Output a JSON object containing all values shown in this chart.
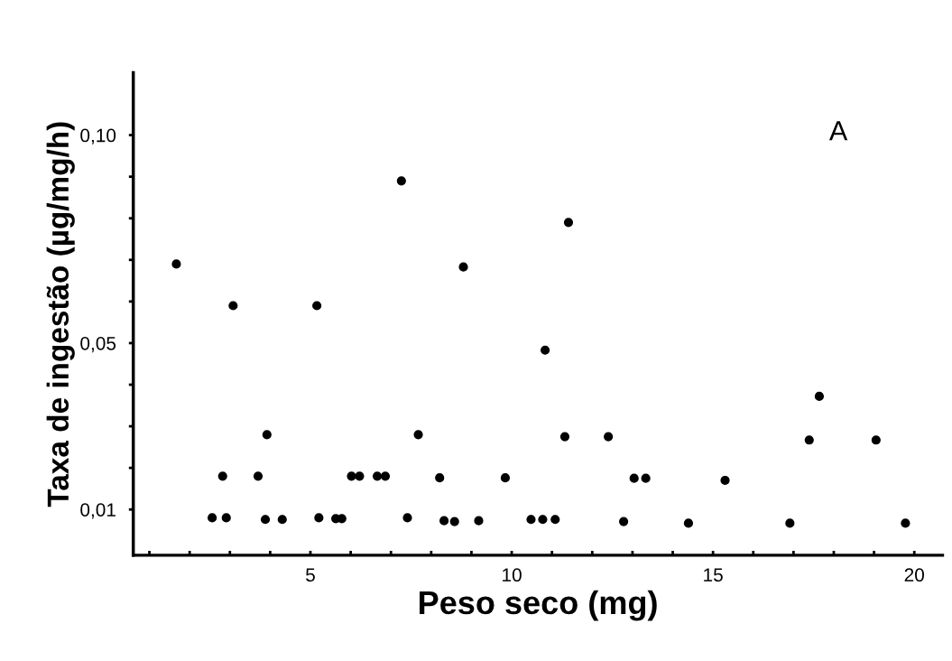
{
  "chart_data": {
    "type": "scatter",
    "xlabel": "Peso seco (mg)",
    "ylabel": "Taxa de ingestão (µg/mg/h)",
    "annotations": [
      "A"
    ],
    "x": [
      1.67,
      2.56,
      2.91,
      2.82,
      3.08,
      3.7,
      3.88,
      3.92,
      4.3,
      5.16,
      5.21,
      5.63,
      5.78,
      6.02,
      6.22,
      6.66,
      6.86,
      7.26,
      7.41,
      7.68,
      8.21,
      8.32,
      8.58,
      8.8,
      9.18,
      9.84,
      10.48,
      10.77,
      11.08,
      10.83,
      11.32,
      11.41,
      12.4,
      12.78,
      13.04,
      13.33,
      14.39,
      15.3,
      16.91,
      17.39,
      17.64,
      19.05,
      19.78
    ],
    "series": [
      {
        "color": "#000000",
        "values": [
          0.069,
          0.008,
          0.008,
          0.018,
          0.059,
          0.018,
          0.0076,
          0.028,
          0.0076,
          0.059,
          0.008,
          0.0078,
          0.0078,
          0.018,
          0.018,
          0.018,
          0.018,
          0.089,
          0.008,
          0.028,
          0.0176,
          0.0073,
          0.0071,
          0.0683,
          0.0073,
          0.0176,
          0.0076,
          0.0076,
          0.0076,
          0.0483,
          0.0275,
          0.079,
          0.0275,
          0.0071,
          0.0175,
          0.0175,
          0.0067,
          0.017,
          0.0067,
          0.0267,
          0.0372,
          0.0267,
          0.0067
        ]
      }
    ],
    "xlim": [
      0.6,
      20.7
    ],
    "ylim": [
      -0.001,
      0.115
    ],
    "xticks": [
      {
        "value": 1,
        "label": null
      },
      {
        "value": 2,
        "label": null
      },
      {
        "value": 3,
        "label": null
      },
      {
        "value": 4,
        "label": null
      },
      5,
      {
        "value": 6,
        "label": null
      },
      {
        "value": 7,
        "label": null
      },
      {
        "value": 8,
        "label": null
      },
      {
        "value": 9,
        "label": null
      },
      10,
      {
        "value": 11,
        "label": null
      },
      {
        "value": 12,
        "label": null
      },
      {
        "value": 13,
        "label": null
      },
      {
        "value": 14,
        "label": null
      },
      15,
      {
        "value": 16,
        "label": null
      },
      {
        "value": 17,
        "label": null
      },
      {
        "value": 18,
        "label": null
      },
      {
        "value": 19,
        "label": null
      },
      20
    ],
    "yticks": [
      {
        "value": 0.01,
        "label": "0,01"
      },
      {
        "value": 0.02,
        "label": null
      },
      {
        "value": 0.03,
        "label": null
      },
      {
        "value": 0.04,
        "label": null
      },
      {
        "value": 0.05,
        "label": "0,05"
      },
      {
        "value": 0.06,
        "label": null
      },
      {
        "value": 0.07,
        "label": null
      },
      {
        "value": 0.08,
        "label": null
      },
      {
        "value": 0.09,
        "label": null
      },
      {
        "value": 0.1,
        "label": "0,10"
      }
    ],
    "marker": "circle",
    "grid": false,
    "legend": false
  }
}
